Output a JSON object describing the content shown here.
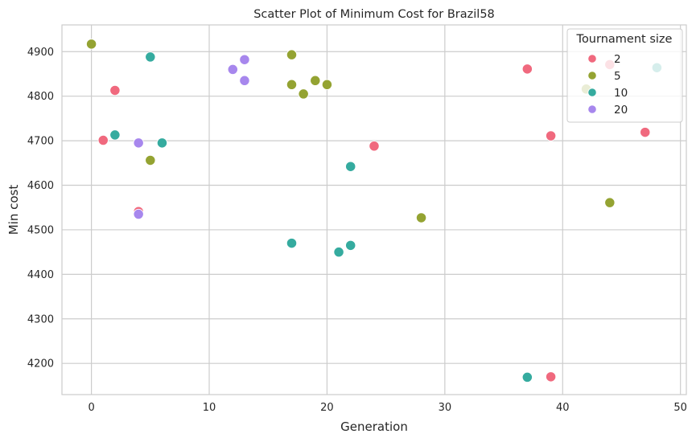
{
  "chart_data": {
    "type": "scatter",
    "title": "Scatter Plot of Minimum Cost for Brazil58",
    "xlabel": "Generation",
    "ylabel": "Min cost",
    "xlim": [
      -2.5,
      50.5
    ],
    "ylim": [
      4130,
      4960
    ],
    "xticks": [
      0,
      10,
      20,
      30,
      40,
      50
    ],
    "yticks": [
      4200,
      4300,
      4400,
      4500,
      4600,
      4700,
      4800,
      4900
    ],
    "grid": true,
    "legend": {
      "title": "Tournament size",
      "placement": "top-right"
    },
    "series": [
      {
        "name": "2",
        "color": "#f0697e",
        "points": [
          [
            1,
            4701
          ],
          [
            2,
            4813
          ],
          [
            4,
            4541
          ],
          [
            24,
            4688
          ],
          [
            37,
            4861
          ],
          [
            39,
            4711
          ],
          [
            39,
            4170
          ],
          [
            44,
            4871
          ],
          [
            47,
            4719
          ]
        ]
      },
      {
        "name": "5",
        "color": "#94a332",
        "points": [
          [
            0,
            4917
          ],
          [
            5,
            4656
          ],
          [
            17,
            4893
          ],
          [
            17,
            4826
          ],
          [
            18,
            4805
          ],
          [
            19,
            4835
          ],
          [
            20,
            4826
          ],
          [
            28,
            4527
          ],
          [
            42,
            4816
          ],
          [
            44,
            4561
          ]
        ]
      },
      {
        "name": "10",
        "color": "#35ab9f",
        "points": [
          [
            2,
            4713
          ],
          [
            5,
            4888
          ],
          [
            6,
            4695
          ],
          [
            17,
            4470
          ],
          [
            21,
            4450
          ],
          [
            22,
            4642
          ],
          [
            22,
            4465
          ],
          [
            37,
            4169
          ],
          [
            48,
            4864
          ]
        ]
      },
      {
        "name": "20",
        "color": "#a787ed",
        "points": [
          [
            4,
            4695
          ],
          [
            4,
            4535
          ],
          [
            12,
            4860
          ],
          [
            13,
            4882
          ],
          [
            13,
            4835
          ]
        ]
      }
    ]
  }
}
